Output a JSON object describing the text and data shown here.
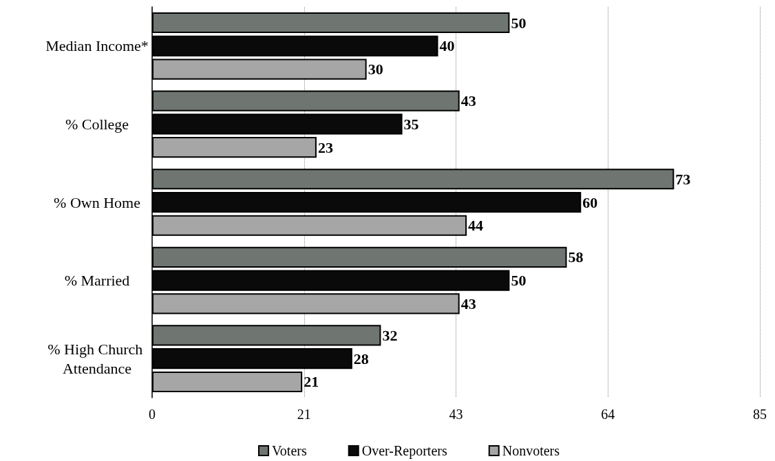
{
  "chart_data": {
    "type": "bar",
    "orientation": "horizontal",
    "categories": [
      "Median Income*",
      "% College",
      "% Own Home",
      "% Married",
      "% High Church Attendance"
    ],
    "series": [
      {
        "name": "Voters",
        "color": "#6f7570",
        "values": [
          50,
          43,
          73,
          58,
          32
        ]
      },
      {
        "name": "Over-Reporters",
        "color": "#0a0a0a",
        "values": [
          40,
          35,
          60,
          50,
          28
        ]
      },
      {
        "name": "Nonvoters",
        "color": "#a6a6a6",
        "values": [
          30,
          23,
          44,
          43,
          21
        ]
      }
    ],
    "xlim": [
      0,
      85
    ],
    "xticks": [
      0,
      {
        "value": 21.25,
        "label": "21"
      },
      {
        "value": 42.5,
        "label": "43"
      },
      {
        "value": 63.75,
        "label": "64"
      },
      85
    ],
    "grid": "x",
    "legend": "bottom",
    "data_labels": true
  }
}
